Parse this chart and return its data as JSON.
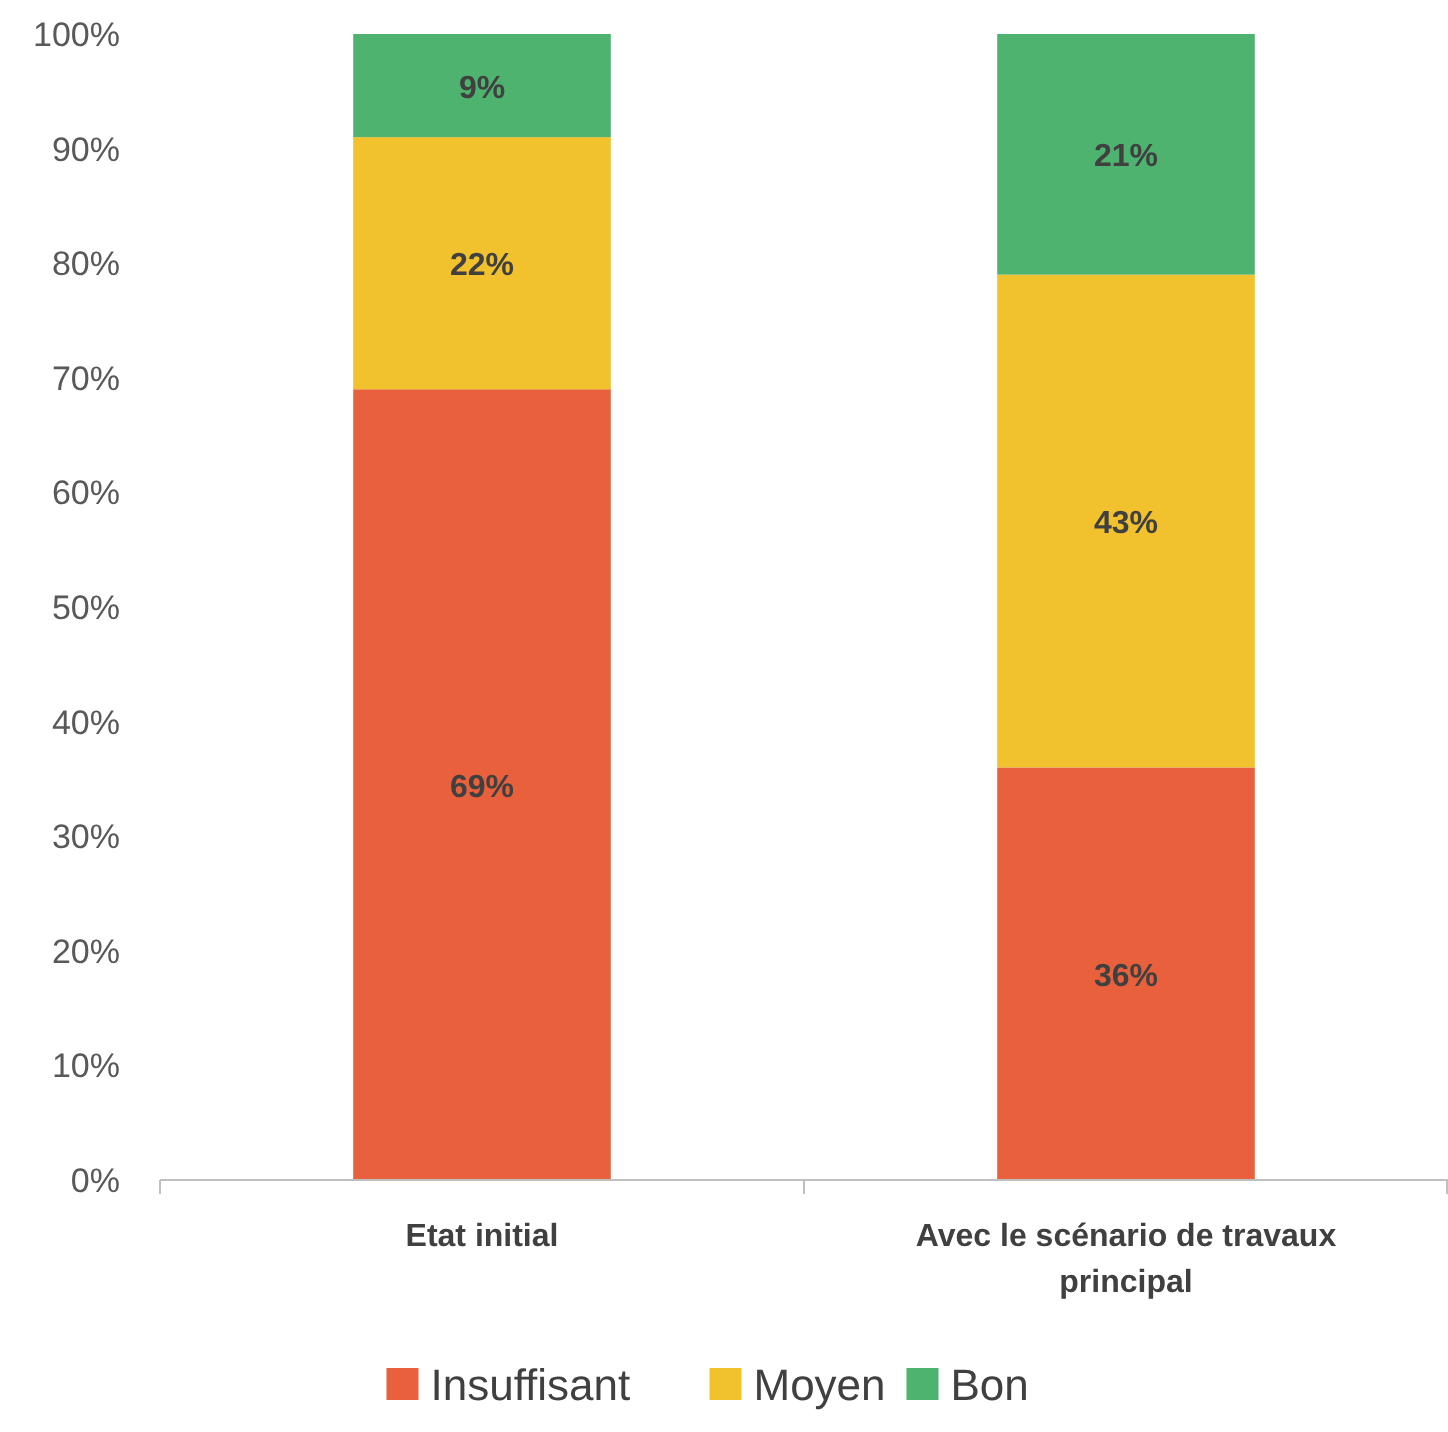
{
  "chart_data": {
    "type": "bar",
    "stacked": true,
    "categories": [
      "Etat initial",
      "Avec le scénario de travaux principal"
    ],
    "series": [
      {
        "name": "Insuffisant",
        "color": "#e8603c",
        "values": [
          69,
          36
        ],
        "value_labels": [
          "69%",
          "36%"
        ]
      },
      {
        "name": "Moyen",
        "color": "#f2c12e",
        "values": [
          22,
          43
        ],
        "value_labels": [
          "22%",
          "43%"
        ]
      },
      {
        "name": "Bon",
        "color": "#4db36e",
        "values": [
          9,
          21
        ],
        "value_labels": [
          "9%",
          "21%"
        ]
      }
    ],
    "ylim": [
      0,
      100
    ],
    "yticks": [
      {
        "value": 0,
        "label": "0%"
      },
      {
        "value": 10,
        "label": "10%"
      },
      {
        "value": 20,
        "label": "20%"
      },
      {
        "value": 30,
        "label": "30%"
      },
      {
        "value": 40,
        "label": "40%"
      },
      {
        "value": 50,
        "label": "50%"
      },
      {
        "value": 60,
        "label": "60%"
      },
      {
        "value": 70,
        "label": "70%"
      },
      {
        "value": 80,
        "label": "80%"
      },
      {
        "value": 90,
        "label": "90%"
      },
      {
        "value": 100,
        "label": "100%"
      }
    ],
    "grid": false,
    "legend": "bottom"
  }
}
